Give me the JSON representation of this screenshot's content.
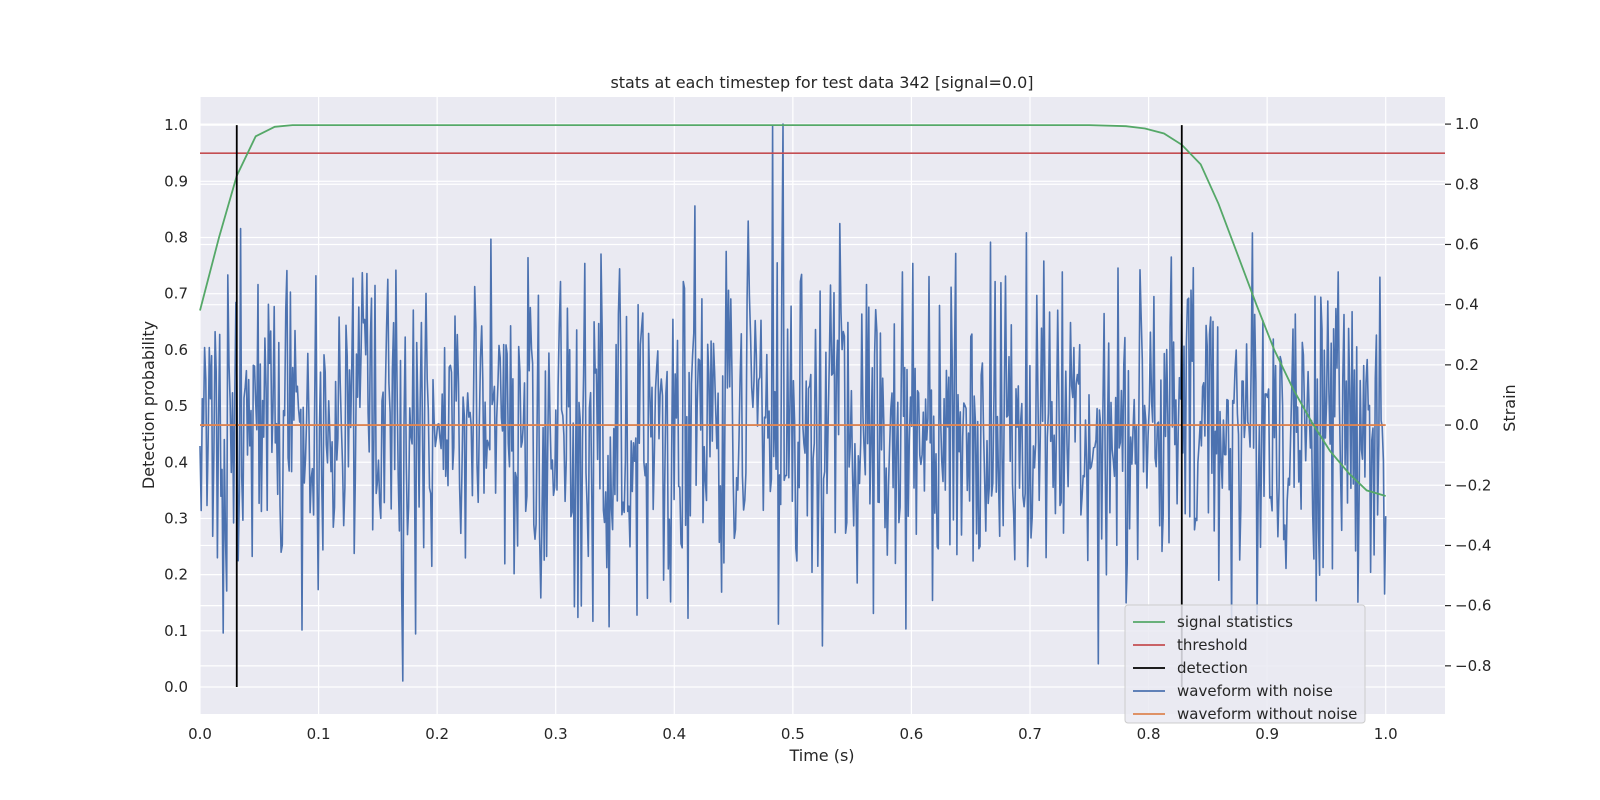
{
  "chart_data": {
    "type": "line",
    "title": "stats at each timestep for test data 342 [signal=0.0]",
    "xlabel": "Time (s)",
    "ylabel_left": "Detection probability",
    "ylabel_right": "Strain",
    "xlim": [
      0.0,
      1.05
    ],
    "ylim_left": [
      -0.048,
      1.05
    ],
    "ylim_right": [
      -0.96,
      1.09
    ],
    "x_ticks": [
      "0.0",
      "0.1",
      "0.2",
      "0.3",
      "0.4",
      "0.5",
      "0.6",
      "0.7",
      "0.8",
      "0.9",
      "1.0"
    ],
    "y_left_ticks": [
      "0.0",
      "0.1",
      "0.2",
      "0.3",
      "0.4",
      "0.5",
      "0.6",
      "0.7",
      "0.8",
      "0.9",
      "1.0"
    ],
    "y_right_ticks": [
      "−0.8",
      "−0.6",
      "−0.4",
      "−0.2",
      "0.0",
      "0.2",
      "0.4",
      "0.6",
      "0.8",
      "1.0"
    ],
    "grid": true,
    "legend_position": "lower-right",
    "series": [
      {
        "name": "signal statistics",
        "color": "#55a868",
        "axis": "left",
        "x": [
          0.0,
          0.016,
          0.031,
          0.047,
          0.063,
          0.078,
          0.2,
          0.4,
          0.6,
          0.75,
          0.781,
          0.797,
          0.813,
          0.828,
          0.844,
          0.859,
          0.875,
          0.891,
          0.906,
          0.922,
          0.938,
          0.953,
          0.969,
          0.984,
          1.0
        ],
        "values": [
          0.67,
          0.8,
          0.91,
          0.98,
          0.997,
          1.0,
          1.0,
          1.0,
          1.0,
          1.0,
          0.998,
          0.994,
          0.985,
          0.965,
          0.93,
          0.86,
          0.77,
          0.68,
          0.6,
          0.53,
          0.47,
          0.42,
          0.38,
          0.35,
          0.34
        ]
      },
      {
        "name": "threshold",
        "color": "#c44e52",
        "axis": "left",
        "x": [
          0.0,
          1.05
        ],
        "values": [
          0.95,
          0.95
        ]
      },
      {
        "name": "detection",
        "color": "#000000",
        "axis": "left",
        "vlines": [
          0.031,
          0.828
        ],
        "range": [
          0.0,
          1.0
        ]
      },
      {
        "name": "waveform with noise",
        "color": "#4c72b0",
        "axis": "right",
        "x_range": [
          0.0,
          1.0
        ],
        "count": 1024,
        "values_summary": {
          "min": -0.89,
          "max": 1.0,
          "std": 0.27,
          "peak_x": 0.492
        }
      },
      {
        "name": "waveform without noise",
        "color": "#dd8452",
        "axis": "right",
        "x": [
          0.0,
          1.0
        ],
        "values": [
          0.0,
          0.0
        ]
      }
    ]
  }
}
